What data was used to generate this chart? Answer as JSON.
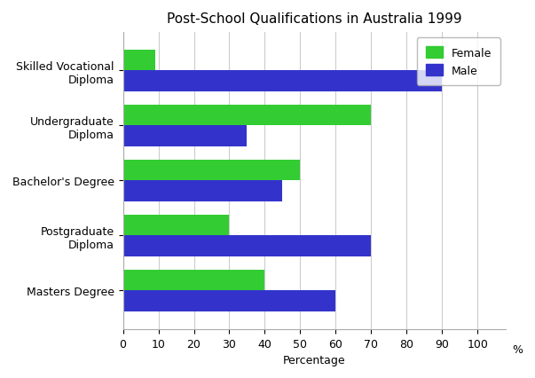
{
  "title": "Post-School Qualifications in Australia 1999",
  "categories": [
    "Skilled Vocational\nDiploma",
    "Undergraduate\nDiploma",
    "Bachelor's Degree",
    "Postgraduate\nDiploma",
    "Masters Degree"
  ],
  "female_values": [
    9,
    70,
    50,
    30,
    40
  ],
  "male_values": [
    90,
    35,
    45,
    70,
    60
  ],
  "female_color": "#33cc33",
  "male_color": "#3333cc",
  "xlabel": "Percentage",
  "xlim": [
    0,
    110
  ],
  "xticks": [
    0,
    10,
    20,
    30,
    40,
    50,
    60,
    70,
    80,
    90,
    100
  ],
  "xtick_labels": [
    "0",
    "10",
    "20",
    "30",
    "40",
    "50",
    "60",
    "70",
    "80",
    "90",
    "100"
  ],
  "percent_label": "%",
  "bar_height": 0.38,
  "legend_labels": [
    "Female",
    "Male"
  ],
  "background_color": "#ffffff",
  "title_fontsize": 11,
  "axis_fontsize": 9,
  "tick_fontsize": 9
}
